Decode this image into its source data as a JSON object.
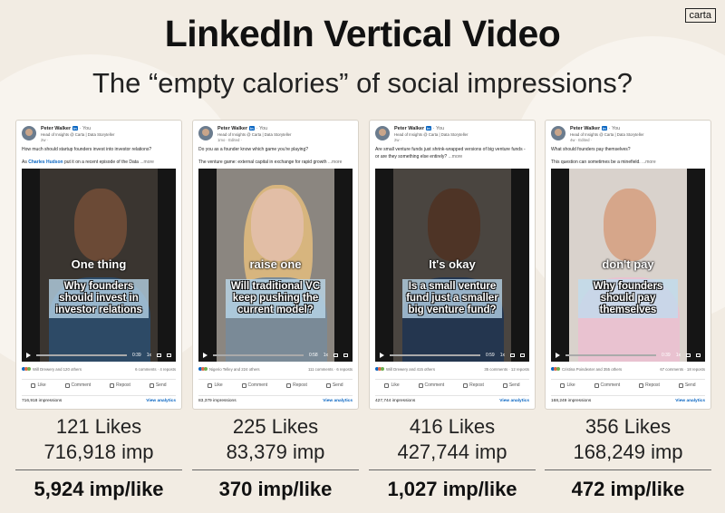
{
  "header": {
    "brand": "carta",
    "title": "LinkedIn Vertical Video",
    "subtitle": "The “empty calories” of social impressions?"
  },
  "actions": [
    "Like",
    "Comment",
    "Repost",
    "Send"
  ],
  "view_analytics": "View analytics",
  "speed": "1x",
  "cards": [
    {
      "author": "Peter Walker",
      "badge": "in",
      "you": "· You",
      "headline": "Head of Insights @ Carta | Data Storyteller",
      "time": "2w ·",
      "post": [
        [
          {
            "text": "How much should startup founders invest into investor relations?"
          }
        ],
        [
          {
            "text": "As "
          },
          {
            "text": "Charles Hudson",
            "link": true
          },
          {
            "text": " put it on a recent episode of the Data "
          },
          {
            "text": "...more",
            "more": true
          }
        ]
      ],
      "caption": "One thing",
      "overlay": "Why founders should invest in investor relations",
      "duration": "0:39",
      "reactions": "Will Drewery and 120 others",
      "engagement": "6 comments · 4 reposts",
      "impressions": "716,918 impressions",
      "likes": "121 Likes",
      "imp": "716,918 imp",
      "imp_per_like": "5,924 imp/like"
    },
    {
      "author": "Peter Walker",
      "badge": "in",
      "you": "· You",
      "headline": "Head of Insights @ Carta | Data Storyteller",
      "time": "1mo · Edited ·",
      "post": [
        [
          {
            "text": "Do you as a founder know which game you're playing?"
          }
        ],
        [
          {
            "text": "The venture game: external capital in exchange for rapid growth "
          },
          {
            "text": "...more",
            "more": true
          }
        ]
      ],
      "caption": "raise one",
      "overlay": "Will traditional VC keep pushing the current model?",
      "duration": "0:58",
      "reactions": "Nigerio Telley and 224 others",
      "engagement": "111 comments · 6 reposts",
      "impressions": "83,379 impressions",
      "likes": "225 Likes",
      "imp": "83,379 imp",
      "imp_per_like": "370 imp/like"
    },
    {
      "author": "Peter Walker",
      "badge": "in",
      "you": "· You",
      "headline": "Head of Insights @ Carta | Data Storyteller",
      "time": "2w ·",
      "post": [
        [
          {
            "text": "Are small venture funds just shrink-wrapped versions of big venture funds - or are they something else entirely? "
          },
          {
            "text": "...more",
            "more": true
          }
        ]
      ],
      "caption": "It's okay",
      "overlay": "Is a small venture fund just a smaller big venture fund?",
      "duration": "0:59",
      "reactions": "Will Drewery and 415 others",
      "engagement": "35 comments · 12 reposts",
      "impressions": "427,744 impressions",
      "likes": "416 Likes",
      "imp": "427,744 imp",
      "imp_per_like": "1,027 imp/like"
    },
    {
      "author": "Peter Walker",
      "badge": "in",
      "you": "· You",
      "headline": "Head of Insights @ Carta | Data Storyteller",
      "time": "4w · Edited ·",
      "post": [
        [
          {
            "text": "What should founders pay themselves?"
          }
        ],
        [
          {
            "text": "This question can sometimes be a minefield. "
          },
          {
            "text": "...more",
            "more": true
          }
        ]
      ],
      "caption": "don't pay",
      "overlay": "Why founders should pay themselves",
      "duration": "0:39",
      "reactions": "Cristina Poindexter and 355 others",
      "engagement": "67 comments · 18 reposts",
      "impressions": "168,249 impressions",
      "likes": "356 Likes",
      "imp": "168,249 imp",
      "imp_per_like": "472 imp/like"
    }
  ]
}
